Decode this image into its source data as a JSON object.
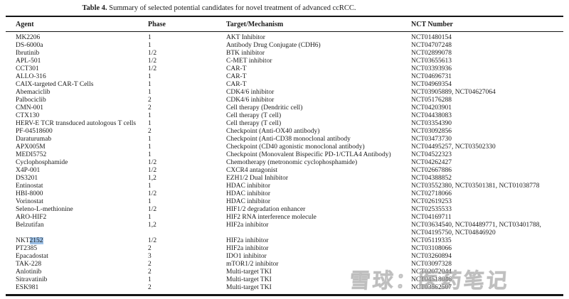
{
  "title": {
    "prefix": "Table 4.",
    "rest": " Summary of selected potential candidates for novel treatment of advanced ccRCC."
  },
  "table": {
    "headers": [
      "Agent",
      "Phase",
      "Target/Mechanism",
      "NCT Number"
    ],
    "rows": [
      {
        "agent": "MK2206",
        "phase": "1",
        "target": "AKT Inhibitor",
        "nct": "NCT01480154"
      },
      {
        "agent": "DS-6000a",
        "phase": "1",
        "target": "Antibody Drug Conjugate (CDH6)",
        "nct": "NCT04707248"
      },
      {
        "agent": "Ibrutinib",
        "phase": "1/2",
        "target": "BTK inhibitor",
        "nct": "NCT02899078"
      },
      {
        "agent": "APL-501",
        "phase": "1/2",
        "target": "C-MET inhibitor",
        "nct": "NCT03655613"
      },
      {
        "agent": "CCT301",
        "phase": "1/2",
        "target": "CAR-T",
        "nct": "NCT03393936"
      },
      {
        "agent": "ALLO-316",
        "phase": "1",
        "target": "CAR-T",
        "nct": "NCT04696731"
      },
      {
        "agent": "CAIX-targeted CAR-T Cells",
        "phase": "1",
        "target": "CAR-T",
        "nct": "NCT04969354"
      },
      {
        "agent": "Abemaciclib",
        "phase": "1",
        "target": "CDK4/6 inhibitor",
        "nct": "NCT03905889, NCT04627064"
      },
      {
        "agent": "Palbociclib",
        "phase": "2",
        "target": "CDK4/6 inhibitor",
        "nct": "NCT05176288"
      },
      {
        "agent": "CMN-001",
        "phase": "2",
        "target": "Cell therapy (Dendritic cell)",
        "nct": "NCT04203901"
      },
      {
        "agent": "CTX130",
        "phase": "1",
        "target": "Cell therapy (T cell)",
        "nct": "NCT04438083"
      },
      {
        "agent": "HERV-E TCR transduced autologous T cells",
        "phase": "1",
        "target": "Cell therapy (T cell)",
        "nct": "NCT03354390"
      },
      {
        "agent": "PF-04518600",
        "phase": "2",
        "target": "Checkpoint (Anti-OX40 antibody)",
        "nct": "NCT03092856"
      },
      {
        "agent": "Daraturumab",
        "phase": "1",
        "target": "Checkpoint (Anti-CD38 monoclonal antibody",
        "nct": "NCT03473730"
      },
      {
        "agent": "APX005M",
        "phase": "1",
        "target": "Checkpoint (CD40 agonistic monoclonal antibody)",
        "nct": "NCT04495257, NCT03502330"
      },
      {
        "agent": "MEDI5752",
        "phase": "1",
        "target": "Checkpoint (Monovalent Bispecific PD-1/CTLA4 Antibody)",
        "nct": "NCT04522323"
      },
      {
        "agent": "Cyclophosphamide",
        "phase": "1/2",
        "target": "Chemotherapy (metronomic cyclophosphamide)",
        "nct": "NCT04262427"
      },
      {
        "agent": "X4P-001",
        "phase": "1/2",
        "target": "CXCR4 antagonist",
        "nct": "NCT02667886"
      },
      {
        "agent": "DS3201",
        "phase": "1,2",
        "target": "EZH1/2 Dual Inhibitor",
        "nct": "NCT04388852"
      },
      {
        "agent": "Entinostat",
        "phase": "1",
        "target": "HDAC inhibitor",
        "nct": "NCT03552380, NCT03501381, NCT01038778"
      },
      {
        "agent": "HBI-8000",
        "phase": "1/2",
        "target": "HDAC inhibitor",
        "nct": "NCT02718066"
      },
      {
        "agent": "Vorinostat",
        "phase": "1",
        "target": "HDAC inhibitor",
        "nct": "NCT02619253"
      },
      {
        "agent": "Seleno-L-methionine",
        "phase": "1/2",
        "target": "HIF1/2 degradation enhancer",
        "nct": "NCT02535533"
      },
      {
        "agent": "ARO-HIF2",
        "phase": "1",
        "target": "HIF2 RNA interference molecule",
        "nct": "NCT04169711"
      },
      {
        "agent": "Belzutifan",
        "phase": "1,2",
        "target": "HIF2a inhibitor",
        "nct": "NCT03634540, NCT04489771, NCT03401788,\nNCT04195750, NCT04846920"
      },
      {
        "agent": "NKT2152",
        "highlight": "2152",
        "phase": "1/2",
        "target": "HIF2a inhibitor",
        "nct": "NCT05119335"
      },
      {
        "agent": "PT2385",
        "phase": "2",
        "target": "HIF2a inhibitor",
        "nct": "NCT03108066"
      },
      {
        "agent": "Epacadostat",
        "phase": "3",
        "target": "IDO1 inhibitor",
        "nct": "NCT03260894"
      },
      {
        "agent": "TAK-228",
        "phase": "2",
        "target": "mTOR1/2 inhibitor",
        "nct": "NCT03097328"
      },
      {
        "agent": "Anlotinib",
        "phase": "2",
        "target": "Multi-target TKI",
        "nct": "NCT02072044"
      },
      {
        "agent": "Sitravatinib",
        "phase": "1",
        "target": "Multi-target TKI",
        "nct": "NCT04518046"
      },
      {
        "agent": "ESK981",
        "phase": "2",
        "target": "Multi-target TKI",
        "nct": "NCT03562507"
      }
    ]
  },
  "watermark": {
    "text": "雪球：医药笔记",
    "color": "#b2b2b2"
  },
  "colors": {
    "selection_highlight": "#9dc1e7",
    "rule": "#151515"
  }
}
